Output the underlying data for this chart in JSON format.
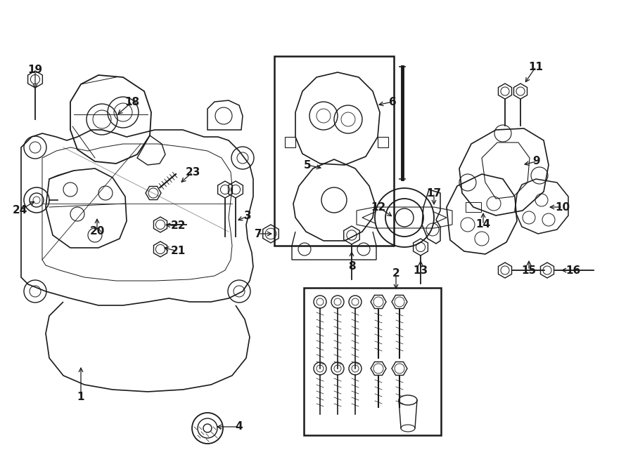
{
  "bg_color": "#ffffff",
  "line_color": "#1a1a1a",
  "lw": 1.0,
  "fig_w": 9.0,
  "fig_h": 6.61,
  "dpi": 100,
  "labels": {
    "1": [
      115,
      565,
      115,
      520
    ],
    "2": [
      563,
      390,
      563,
      415
    ],
    "3": [
      352,
      308,
      335,
      315
    ],
    "4": [
      340,
      608,
      305,
      608
    ],
    "5": [
      437,
      235,
      460,
      240
    ],
    "6": [
      558,
      145,
      535,
      150
    ],
    "7": [
      367,
      333,
      390,
      333
    ],
    "8": [
      500,
      380,
      500,
      355
    ],
    "9": [
      763,
      230,
      742,
      235
    ],
    "10": [
      800,
      295,
      778,
      295
    ],
    "11": [
      762,
      95,
      745,
      120
    ],
    "12": [
      538,
      295,
      560,
      310
    ],
    "13": [
      598,
      385,
      598,
      368
    ],
    "14": [
      687,
      320,
      687,
      300
    ],
    "15": [
      752,
      385,
      752,
      368
    ],
    "16": [
      815,
      385,
      795,
      385
    ],
    "17": [
      617,
      275,
      617,
      295
    ],
    "18": [
      188,
      145,
      165,
      165
    ],
    "19": [
      50,
      100,
      50,
      130
    ],
    "20": [
      138,
      330,
      138,
      308
    ],
    "21": [
      253,
      358,
      230,
      352
    ],
    "22": [
      254,
      322,
      232,
      320
    ],
    "23": [
      274,
      245,
      255,
      262
    ],
    "24": [
      28,
      300,
      52,
      285
    ]
  }
}
